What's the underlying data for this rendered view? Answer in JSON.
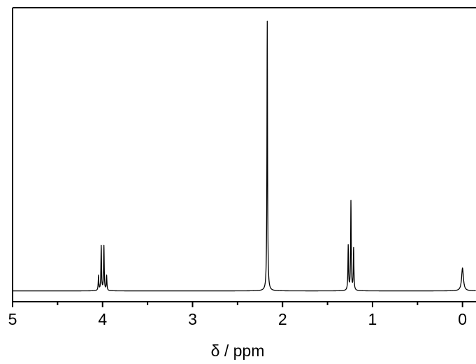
{
  "chart_data": {
    "type": "line",
    "title": "",
    "xlabel": "δ / ppm",
    "ylabel": "",
    "x_reversed": true,
    "xlim": [
      5.0,
      -0.15
    ],
    "ylim": [
      -0.04,
      1.05
    ],
    "x_ticks": [
      {
        "value": 5,
        "label": "5"
      },
      {
        "value": 4,
        "label": "4"
      },
      {
        "value": 3,
        "label": "3"
      },
      {
        "value": 2,
        "label": "2"
      },
      {
        "value": 1,
        "label": "1"
      },
      {
        "value": 0,
        "label": "0"
      }
    ],
    "x_minor_ticks": [
      4.5,
      3.5,
      2.5,
      1.5,
      0.5
    ],
    "grid": false,
    "series": [
      {
        "peaks": [
          {
            "center": 4.045,
            "height": 0.055,
            "width": 0.004
          },
          {
            "center": 4.015,
            "height": 0.165,
            "width": 0.004
          },
          {
            "center": 3.985,
            "height": 0.165,
            "width": 0.004
          },
          {
            "center": 3.955,
            "height": 0.055,
            "width": 0.004
          },
          {
            "center": 2.17,
            "height": 1.0,
            "width": 0.004
          },
          {
            "center": 1.27,
            "height": 0.165,
            "width": 0.004
          },
          {
            "center": 1.24,
            "height": 0.33,
            "width": 0.004
          },
          {
            "center": 1.21,
            "height": 0.155,
            "width": 0.004
          },
          {
            "center": 0.0,
            "height": 0.085,
            "width": 0.012
          }
        ]
      }
    ]
  }
}
